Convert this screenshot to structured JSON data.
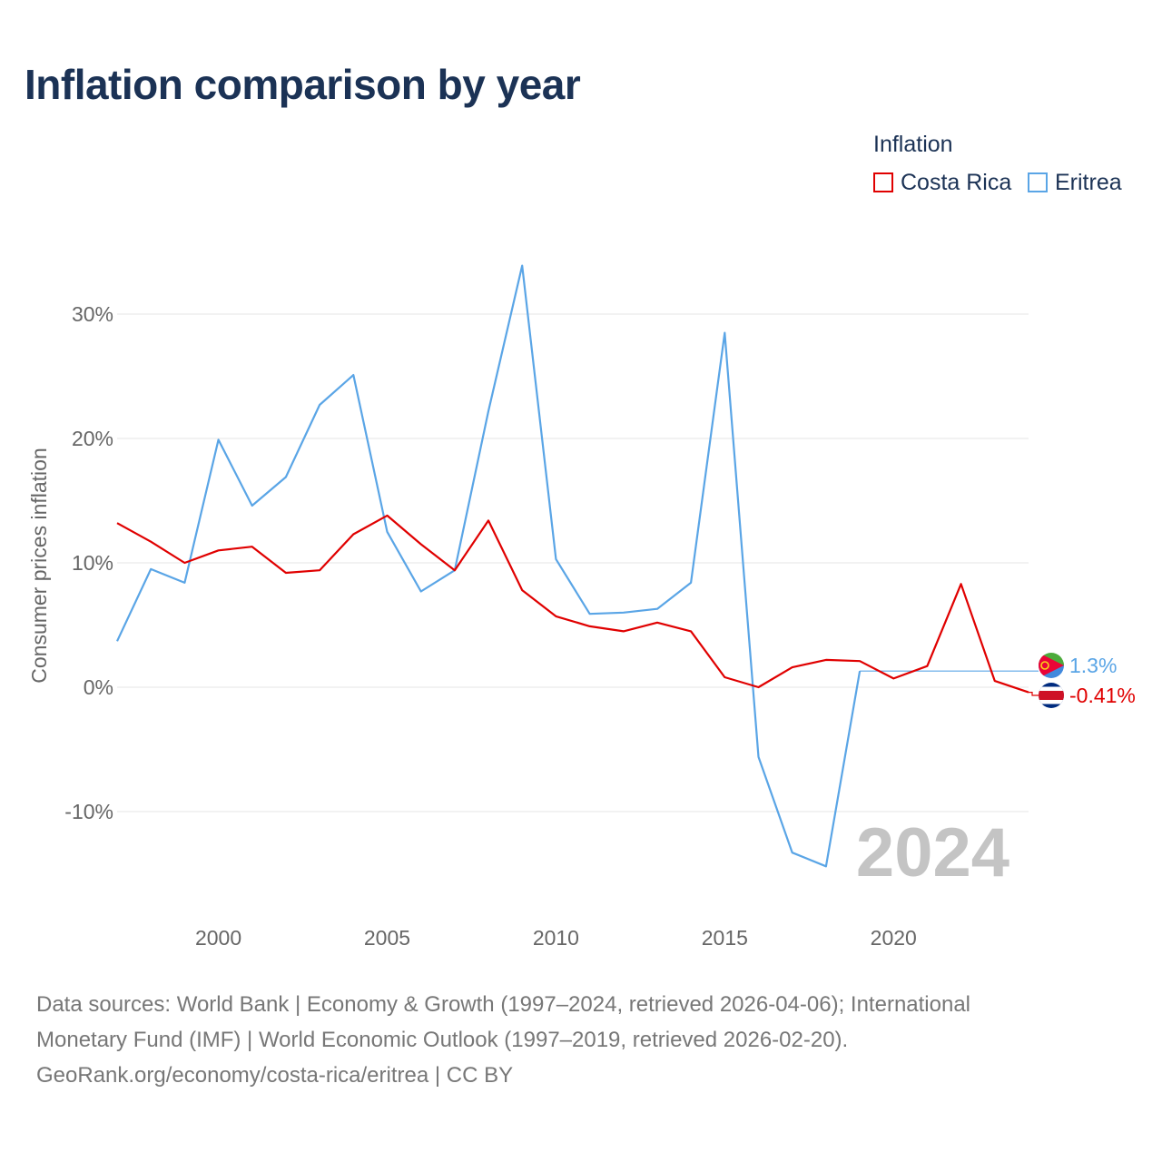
{
  "title": "Inflation comparison by year",
  "legend": {
    "title": "Inflation",
    "items": [
      {
        "label": "Costa Rica",
        "color": "#e00000"
      },
      {
        "label": "Eritrea",
        "color": "#5aa5e6"
      }
    ]
  },
  "watermark_year": "2024",
  "end_labels": {
    "eritrea": "1.3%",
    "costa_rica": "-0.41%"
  },
  "source_lines": [
    "Data sources: World Bank | Economy & Growth (1997–2024, retrieved 2026-04-06); International",
    "Monetary Fund (IMF) | World Economic Outlook (1997–2019, retrieved 2026-02-20).",
    "GeoRank.org/economy/costa-rica/eritrea | CC BY"
  ],
  "chart_data": {
    "type": "line",
    "title": "Inflation comparison by year",
    "xlabel": "",
    "ylabel": "Consumer prices inflation",
    "xlim": [
      1997,
      2024
    ],
    "ylim": [
      -17,
      34
    ],
    "x_ticks": [
      2000,
      2005,
      2010,
      2015,
      2020
    ],
    "y_ticks": [
      {
        "value": 30,
        "label": "30%"
      },
      {
        "value": 20,
        "label": "20%"
      },
      {
        "value": 10,
        "label": "10%"
      },
      {
        "value": 0,
        "label": "0%"
      },
      {
        "value": -10,
        "label": "-10%"
      }
    ],
    "grid": true,
    "legend_position": "top-right",
    "series": [
      {
        "name": "Costa Rica",
        "color": "#e00000",
        "x": [
          1997,
          1998,
          1999,
          2000,
          2001,
          2002,
          2003,
          2004,
          2005,
          2006,
          2007,
          2008,
          2009,
          2010,
          2011,
          2012,
          2013,
          2014,
          2015,
          2016,
          2017,
          2018,
          2019,
          2020,
          2021,
          2022,
          2023,
          2024
        ],
        "values": [
          13.2,
          11.7,
          10.0,
          11.0,
          11.3,
          9.2,
          9.4,
          12.3,
          13.8,
          11.5,
          9.4,
          13.4,
          7.8,
          5.7,
          4.9,
          4.5,
          5.2,
          4.5,
          0.8,
          0.0,
          1.6,
          2.2,
          2.1,
          0.7,
          1.7,
          8.3,
          0.5,
          -0.41
        ]
      },
      {
        "name": "Eritrea",
        "color": "#5aa5e6",
        "x": [
          1997,
          1998,
          1999,
          2000,
          2001,
          2002,
          2003,
          2004,
          2005,
          2006,
          2007,
          2008,
          2009,
          2010,
          2011,
          2012,
          2013,
          2014,
          2015,
          2016,
          2017,
          2018,
          2019
        ],
        "values": [
          3.7,
          9.5,
          8.4,
          19.9,
          14.6,
          16.9,
          22.7,
          25.1,
          12.5,
          7.7,
          9.4,
          22.2,
          33.9,
          10.3,
          5.9,
          6.0,
          6.3,
          8.4,
          28.5,
          -5.6,
          -13.3,
          -14.4,
          1.3
        ],
        "carried_forward_to": 2024,
        "carried_value": 1.3
      }
    ]
  }
}
